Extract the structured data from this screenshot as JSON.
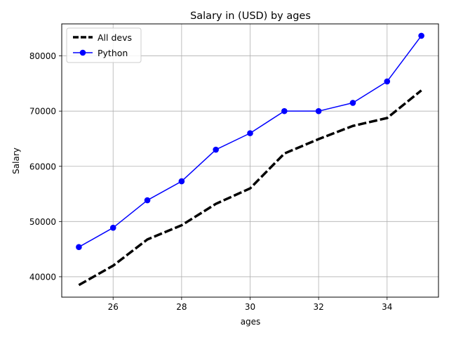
{
  "chart_data": {
    "type": "line",
    "title": "Salary in (USD) by ages",
    "xlabel": "ages",
    "ylabel": "Salary",
    "x": [
      25,
      26,
      27,
      28,
      29,
      30,
      31,
      32,
      33,
      34,
      35
    ],
    "xlim": [
      24.5,
      35.5
    ],
    "ylim": [
      36300,
      85800
    ],
    "xticks": [
      26,
      28,
      30,
      32,
      34
    ],
    "yticks": [
      40000,
      50000,
      60000,
      70000,
      80000
    ],
    "grid": true,
    "legend_position": "upper-left",
    "series": [
      {
        "name": "All devs",
        "values": [
          38496,
          42000,
          46752,
          49320,
          53200,
          56000,
          62316,
          64928,
          67317,
          68748,
          73752
        ],
        "color": "#000000",
        "style": "dashed",
        "marker": "none"
      },
      {
        "name": "Python",
        "values": [
          45372,
          48876,
          53850,
          57287,
          63016,
          65998,
          70003,
          70000,
          71496,
          75370,
          83640
        ],
        "color": "#0000ff",
        "style": "solid",
        "marker": "circle"
      }
    ]
  }
}
